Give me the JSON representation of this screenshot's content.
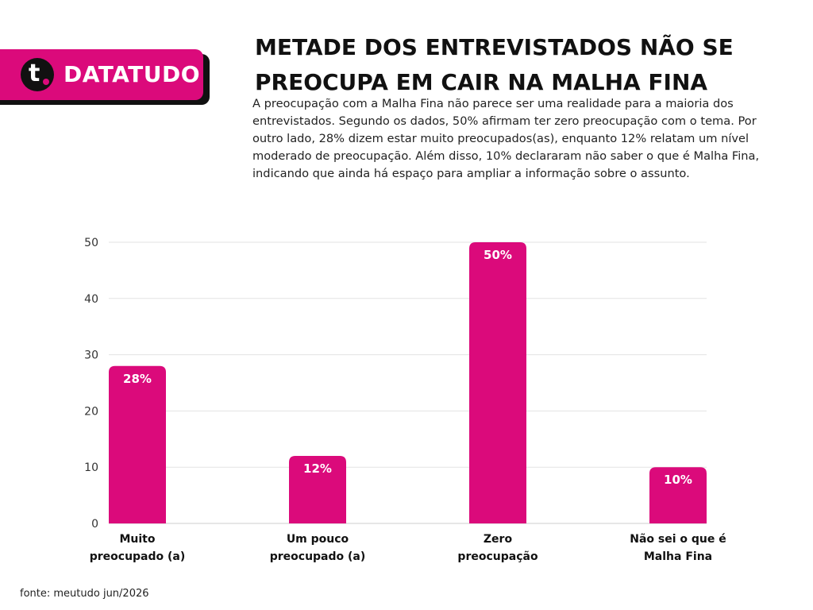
{
  "brand": {
    "logo_letter": "t",
    "name": "DATATUDO",
    "accent_color": "#db0a7b"
  },
  "header": {
    "title": "METADE DOS ENTREVISTADOS NÃO SE PREOCUPA EM CAIR NA MALHA FINA",
    "description": "A preocupação com a Malha Fina não parece ser uma realidade para a maioria dos entrevistados. Segundo os dados, 50% afirmam ter zero preocupação com o tema. Por outro lado, 28% dizem estar muito preocupados(as), enquanto 12% relatam um nível moderado de preocupação. Além disso, 10% declararam não saber o que é Malha Fina, indicando que ainda há espaço para ampliar a informação sobre o assunto."
  },
  "chart_data": {
    "type": "bar",
    "categories": [
      [
        "Muito",
        "preocupado (a)"
      ],
      [
        "Um pouco",
        "preocupado (a)"
      ],
      [
        "Zero",
        "preocupação"
      ],
      [
        "Não sei o que é",
        "Malha Fina"
      ]
    ],
    "values": [
      28,
      12,
      50,
      10
    ],
    "data_labels": [
      "28%",
      "12%",
      "50%",
      "10%"
    ],
    "yticks": [
      0,
      10,
      20,
      30,
      40,
      50
    ],
    "ylim": [
      0,
      50
    ],
    "grid": true,
    "bar_color": "#db0a7b",
    "label_color": "#ffffff"
  },
  "footer": {
    "source": "fonte: meutudo jun/2026"
  }
}
